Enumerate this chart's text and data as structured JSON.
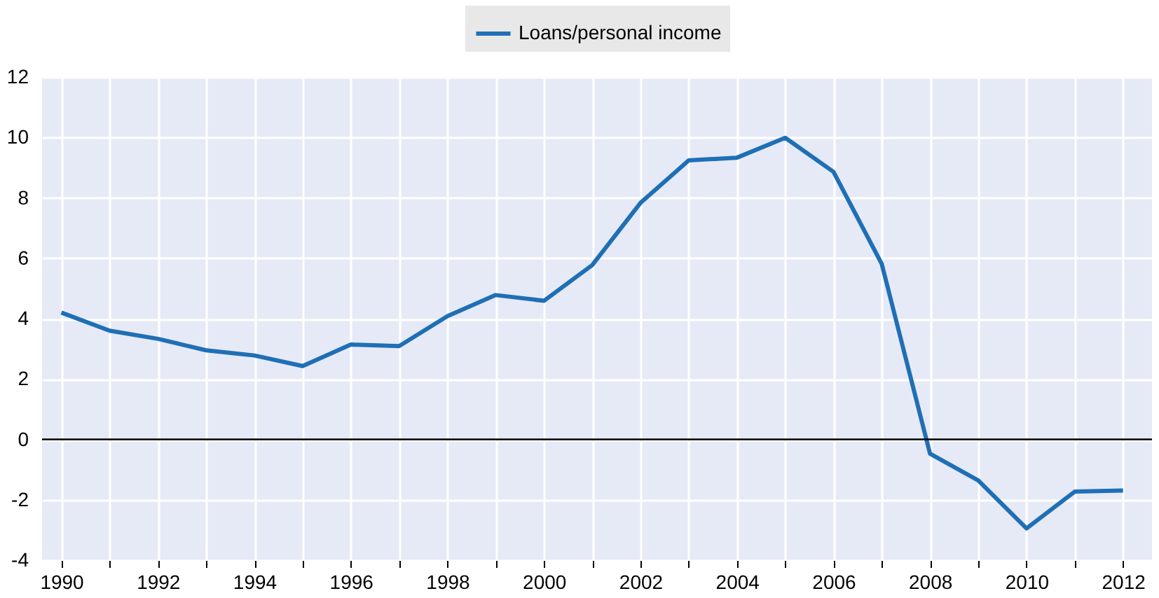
{
  "chart_data": {
    "type": "line",
    "x": [
      1990,
      1991,
      1992,
      1993,
      1994,
      1995,
      1996,
      1997,
      1998,
      1999,
      2000,
      2001,
      2002,
      2003,
      2004,
      2005,
      2006,
      2007,
      2008,
      2009,
      2010,
      2011,
      2012
    ],
    "series": [
      {
        "name": "Loans/personal income",
        "color": "#1f6fb5",
        "values": [
          4.2,
          3.6,
          3.33,
          2.95,
          2.78,
          2.43,
          3.14,
          3.09,
          4.08,
          4.78,
          4.59,
          5.77,
          7.83,
          9.24,
          9.33,
          9.99,
          8.86,
          5.81,
          -0.47,
          -1.36,
          -2.95,
          -1.73,
          -1.69
        ]
      }
    ],
    "xlim": [
      1989.6,
      2012.6
    ],
    "xticks": [
      1990,
      {
        "value": 1991,
        "label": null
      },
      1992,
      {
        "value": 1993,
        "label": null
      },
      1994,
      {
        "value": 1995,
        "label": null
      },
      1996,
      {
        "value": 1997,
        "label": null
      },
      1998,
      {
        "value": 1999,
        "label": null
      },
      2000,
      {
        "value": 2001,
        "label": null
      },
      2002,
      {
        "value": 2003,
        "label": null
      },
      2004,
      {
        "value": 2005,
        "label": null
      },
      2006,
      {
        "value": 2007,
        "label": null
      },
      2008,
      {
        "value": 2009,
        "label": null
      },
      2010,
      {
        "value": 2011,
        "label": null
      },
      2012
    ],
    "ylim": [
      -4,
      12
    ],
    "yticks": [
      -4,
      -2,
      0,
      2,
      4,
      6,
      8,
      10,
      12
    ],
    "ref_lines": [
      {
        "axis": "y",
        "value": 0,
        "color": "#000000"
      }
    ],
    "grid": true,
    "legend": "top",
    "line_style": "solid",
    "marker": "none"
  }
}
